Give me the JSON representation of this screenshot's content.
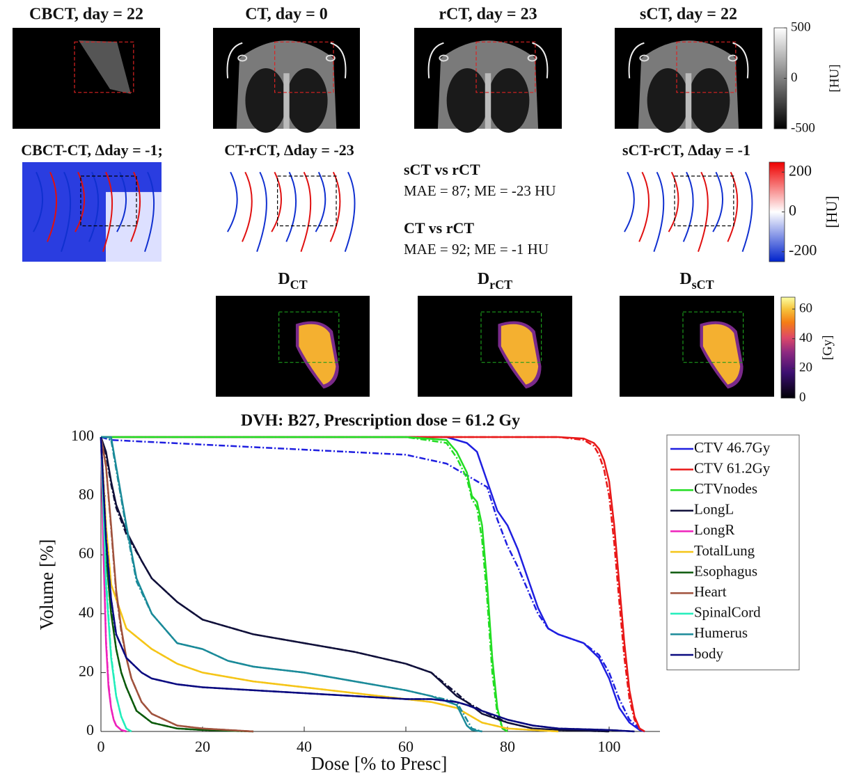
{
  "figure": {
    "image_titles": [
      "CBCT, day = 22",
      "CT, day = 0",
      "rCT, day = 23",
      "sCT, day = 22"
    ],
    "difference_titles": [
      "CBCT-CT, Δday = -1;",
      "CT-rCT, Δday = -23",
      "sCT-rCT, Δday = -1"
    ],
    "metrics": [
      {
        "title": "sCT vs rCT",
        "text": "MAE = 87; ME = -23 HU"
      },
      {
        "title": "CT vs rCT",
        "text": "MAE = 92; ME = -1 HU"
      }
    ],
    "dose_titles": [
      {
        "main": "D",
        "sub": "CT"
      },
      {
        "main": "D",
        "sub": "rCT"
      },
      {
        "main": "D",
        "sub": "sCT"
      }
    ],
    "colorbars": [
      {
        "label": "[HU]",
        "lim": [
          -500,
          500
        ],
        "ticks": [
          -500,
          0,
          500
        ]
      },
      {
        "label": "[HU]",
        "lim": [
          -250,
          250
        ],
        "ticks": [
          -200,
          0,
          200
        ]
      },
      {
        "label": "[Gy]",
        "lim": [
          0,
          68
        ],
        "ticks": [
          0,
          20,
          40,
          60
        ]
      }
    ]
  },
  "chart_data": {
    "type": "line",
    "title": "DVH: B27, Prescription dose = 61.2 Gy",
    "x_label": "Dose [% to Presc]",
    "y_label": "Volume [%]",
    "xlim": [
      0,
      110
    ],
    "ylim": [
      0,
      100
    ],
    "xticks": [
      0,
      20,
      40,
      60,
      80,
      100
    ],
    "yticks": [
      0,
      20,
      40,
      60,
      80,
      100
    ],
    "legend": "outside-right",
    "series": [
      {
        "name": "CTV 46.7Gy",
        "color": "#1f1fe0",
        "x": [
          0,
          2,
          60,
          68,
          72,
          74,
          76,
          78,
          80,
          82,
          84,
          86,
          88,
          90,
          95,
          98,
          100,
          102,
          104,
          106,
          107
        ],
        "values": [
          100,
          100,
          100,
          100,
          98,
          95,
          85,
          75,
          70,
          62,
          52,
          42,
          35,
          33,
          30,
          25,
          18,
          8,
          3,
          0.5,
          0
        ],
        "dashed_values": [
          100,
          99,
          94,
          91,
          87,
          85,
          83,
          72,
          63,
          56,
          48,
          40,
          35,
          33,
          30,
          26,
          20,
          11,
          4,
          1,
          0
        ]
      },
      {
        "name": "CTV 61.2Gy",
        "color": "#e81818",
        "x": [
          0,
          70,
          90,
          95,
          97,
          98,
          99,
          100,
          101,
          102,
          103,
          104,
          105,
          106,
          107
        ],
        "values": [
          100,
          100,
          100,
          99.5,
          98,
          96,
          92,
          85,
          70,
          50,
          30,
          14,
          5,
          1,
          0
        ],
        "dashed_values": [
          100,
          100,
          100,
          99,
          97,
          94,
          89,
          80,
          64,
          44,
          25,
          11,
          4,
          1,
          0
        ]
      },
      {
        "name": "CTVnodes",
        "color": "#22dd22",
        "x": [
          0,
          60,
          68,
          70,
          72,
          73,
          74,
          75,
          76,
          77,
          78,
          79,
          80
        ],
        "values": [
          100,
          100,
          99,
          95,
          88,
          80,
          78,
          70,
          50,
          25,
          8,
          1,
          0
        ],
        "dashed_values": [
          100,
          100,
          98,
          93,
          86,
          79,
          76,
          65,
          45,
          20,
          6,
          1,
          0
        ]
      },
      {
        "name": "LongL",
        "color": "#10103a",
        "x": [
          0,
          1,
          2,
          3,
          5,
          8,
          10,
          15,
          20,
          30,
          40,
          50,
          60,
          65,
          70,
          72,
          75,
          80,
          85,
          90,
          100
        ],
        "values": [
          100,
          95,
          85,
          77,
          68,
          58,
          52,
          44,
          38,
          33,
          30,
          27,
          23,
          20,
          12,
          10,
          6,
          3,
          1,
          0.5,
          0
        ],
        "dashed_values": [
          100,
          94,
          84,
          76,
          67,
          58,
          52,
          44,
          38,
          33,
          30,
          27,
          23,
          20,
          13,
          10,
          7,
          3,
          1,
          0.5,
          0
        ]
      },
      {
        "name": "LongR",
        "color": "#ee22bb",
        "x": [
          0,
          0.5,
          1,
          1.5,
          2,
          2.5,
          3,
          4,
          5
        ],
        "values": [
          100,
          60,
          30,
          15,
          8,
          4,
          2,
          0.5,
          0
        ],
        "dashed_values": [
          100,
          62,
          31,
          16,
          8,
          4,
          2,
          0.5,
          0
        ]
      },
      {
        "name": "TotalLung",
        "color": "#f5c518",
        "x": [
          0,
          1,
          2,
          5,
          10,
          15,
          20,
          30,
          40,
          50,
          60,
          65,
          70,
          72,
          75,
          80,
          85,
          90
        ],
        "values": [
          100,
          70,
          50,
          35,
          28,
          23,
          20,
          17,
          15,
          13,
          11,
          10,
          8,
          6,
          3,
          1,
          0.5,
          0
        ],
        "dashed_values": [
          100,
          70,
          50,
          35,
          28,
          23,
          20,
          17,
          15,
          13,
          11,
          10,
          8,
          6,
          3,
          1,
          0.5,
          0
        ]
      },
      {
        "name": "Esophagus",
        "color": "#0b5a0b",
        "x": [
          0,
          1,
          2,
          3,
          4,
          5,
          7,
          10,
          15,
          20,
          30
        ],
        "values": [
          100,
          60,
          40,
          28,
          20,
          15,
          7,
          3,
          1,
          0.5,
          0
        ],
        "dashed_values": [
          100,
          61,
          41,
          28,
          20,
          15,
          7,
          3,
          1,
          0.5,
          0
        ]
      },
      {
        "name": "Heart",
        "color": "#a0523d",
        "x": [
          0,
          1,
          2,
          3,
          4,
          5,
          6,
          8,
          10,
          15,
          20,
          30
        ],
        "values": [
          100,
          90,
          70,
          48,
          35,
          25,
          18,
          10,
          6,
          2,
          1,
          0
        ],
        "dashed_values": [
          100,
          90,
          69,
          47,
          34,
          25,
          18,
          10,
          6,
          2,
          1,
          0
        ]
      },
      {
        "name": "SpinalCord",
        "color": "#22eebb",
        "x": [
          0,
          1,
          2,
          3,
          4,
          5,
          6
        ],
        "values": [
          100,
          50,
          25,
          12,
          5,
          1,
          0
        ],
        "dashed_values": [
          100,
          52,
          26,
          12,
          5,
          1,
          0
        ]
      },
      {
        "name": "Humerus",
        "color": "#1a8a99",
        "x": [
          0,
          1,
          2,
          3,
          4,
          5,
          7,
          10,
          15,
          20,
          25,
          30,
          40,
          50,
          60,
          65,
          70,
          72,
          73,
          75
        ],
        "values": [
          100,
          100,
          100,
          90,
          80,
          70,
          52,
          40,
          30,
          28,
          24,
          22,
          20,
          17,
          14,
          12,
          9,
          2,
          0.5,
          0
        ],
        "dashed_values": [
          100,
          100,
          99,
          89,
          79,
          69,
          51,
          40,
          30,
          28,
          24,
          22,
          20,
          17,
          14,
          12,
          10,
          4,
          1,
          0
        ]
      },
      {
        "name": "body",
        "color": "#0a0a80",
        "x": [
          0,
          1,
          2,
          3,
          5,
          8,
          10,
          15,
          20,
          30,
          40,
          50,
          60,
          65,
          70,
          72,
          75,
          80,
          85,
          90,
          100,
          105
        ],
        "values": [
          100,
          65,
          45,
          33,
          25,
          20,
          18,
          16,
          15,
          14,
          13,
          12,
          11,
          11,
          10,
          9,
          7,
          4,
          2,
          1,
          0.5,
          0
        ],
        "dashed_values": [
          100,
          66,
          45,
          33,
          25,
          20,
          18,
          16,
          15,
          14,
          13,
          12,
          11,
          11,
          10,
          9,
          7,
          4,
          2,
          1,
          0.5,
          0
        ]
      }
    ]
  }
}
